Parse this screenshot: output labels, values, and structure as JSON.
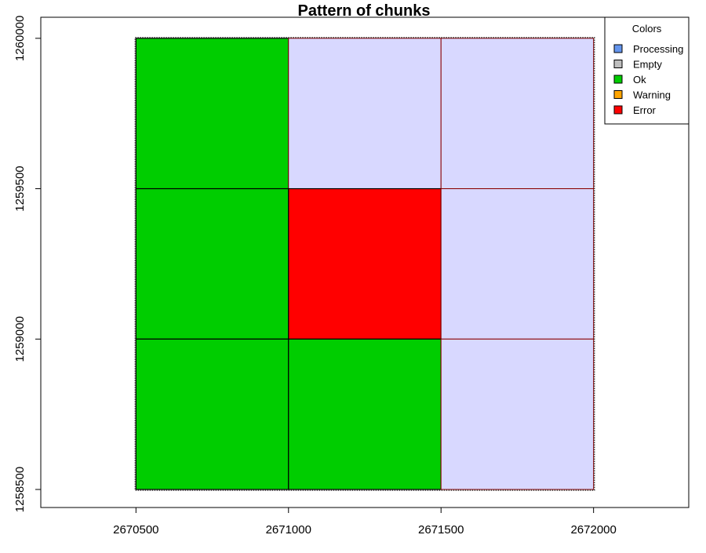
{
  "chart_data": {
    "type": "heatmap",
    "title": "Pattern of chunks",
    "xlabel": "",
    "ylabel": "",
    "xlim": [
      2670188,
      2672312
    ],
    "ylim": [
      2670188,
      2672312
    ],
    "y_range": [
      1258440,
      1260070
    ],
    "x_ticks": [
      "2670500",
      "2671000",
      "2671500",
      "2672000"
    ],
    "y_ticks": [
      "1258500",
      "1259000",
      "1259500",
      "1260000"
    ],
    "legend": {
      "title": "Colors",
      "placement": "top-right",
      "entries": [
        {
          "label": "Processing",
          "color": "#6495ED"
        },
        {
          "label": "Empty",
          "color": "#BEBEBE"
        },
        {
          "label": "Ok",
          "color": "#00CD00"
        },
        {
          "label": "Warning",
          "color": "#FFA500"
        },
        {
          "label": "Error",
          "color": "#FF0000"
        }
      ]
    },
    "pending_color": "#D8D8FF",
    "chunks": [
      {
        "xmin": 2670500,
        "xmax": 2671000,
        "ymin": 1259500,
        "ymax": 1260000,
        "status": "Ok"
      },
      {
        "xmin": 2671000,
        "xmax": 2671500,
        "ymin": 1259500,
        "ymax": 1260000,
        "status": "Pending"
      },
      {
        "xmin": 2671500,
        "xmax": 2672000,
        "ymin": 1259500,
        "ymax": 1260000,
        "status": "Pending"
      },
      {
        "xmin": 2670500,
        "xmax": 2671000,
        "ymin": 1259000,
        "ymax": 1259500,
        "status": "Ok"
      },
      {
        "xmin": 2671000,
        "xmax": 2671500,
        "ymin": 1259000,
        "ymax": 1259500,
        "status": "Error"
      },
      {
        "xmin": 2671500,
        "xmax": 2672000,
        "ymin": 1259000,
        "ymax": 1259500,
        "status": "Pending"
      },
      {
        "xmin": 2670500,
        "xmax": 2671000,
        "ymin": 1258500,
        "ymax": 1259000,
        "status": "Ok"
      },
      {
        "xmin": 2671000,
        "xmax": 2671500,
        "ymin": 1258500,
        "ymax": 1259000,
        "status": "Ok"
      },
      {
        "xmin": 2671500,
        "xmax": 2672000,
        "ymin": 1258500,
        "ymax": 1259000,
        "status": "Pending"
      }
    ]
  }
}
